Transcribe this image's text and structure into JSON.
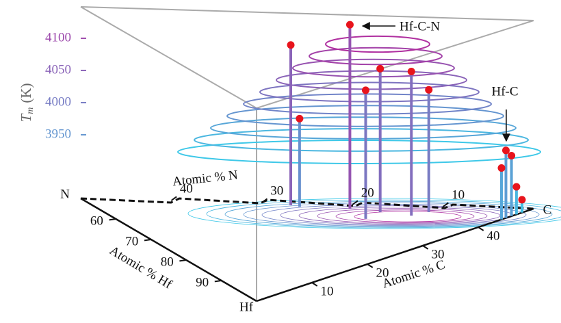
{
  "chart_data": {
    "type": "stem3d",
    "z_label": {
      "symbol": "T",
      "subscript": "m",
      "unit": "(K)"
    },
    "zlim": [
      3851,
      4150
    ],
    "zticks": [
      3950,
      4000,
      4050,
      4100
    ],
    "n_ticks": [
      40,
      30,
      20,
      10
    ],
    "hf_ticks": [
      60,
      70,
      80,
      90
    ],
    "c_ticks": [
      10,
      20,
      30,
      40
    ],
    "n_label": "Atomic % N",
    "hf_label": "Atomic % Hf",
    "c_label": "Atomic % C",
    "corners": {
      "n": "N",
      "c": "C",
      "hf": "Hf"
    },
    "series": [
      {
        "name": "Hf-C-N",
        "color": "#e8141c",
        "n": [
          24.8,
          26.2,
          19,
          14.8,
          14.2,
          10.5,
          9.8
        ],
        "c": [
          23.5,
          22.8,
          28.9,
          31.7,
          28.7,
          34.6,
          37.3
        ],
        "values": [
          3988,
          4100,
          4137,
          4074,
          4051,
          4075,
          4041
        ]
      },
      {
        "name": "Hf-C",
        "color": "#e8141c",
        "n": [
          0,
          0,
          0,
          0,
          0
        ],
        "c": [
          45,
          46,
          44.2,
          46.9,
          47.9
        ],
        "values": [
          3956,
          3945,
          3931,
          3894,
          3871
        ]
      }
    ]
  }
}
